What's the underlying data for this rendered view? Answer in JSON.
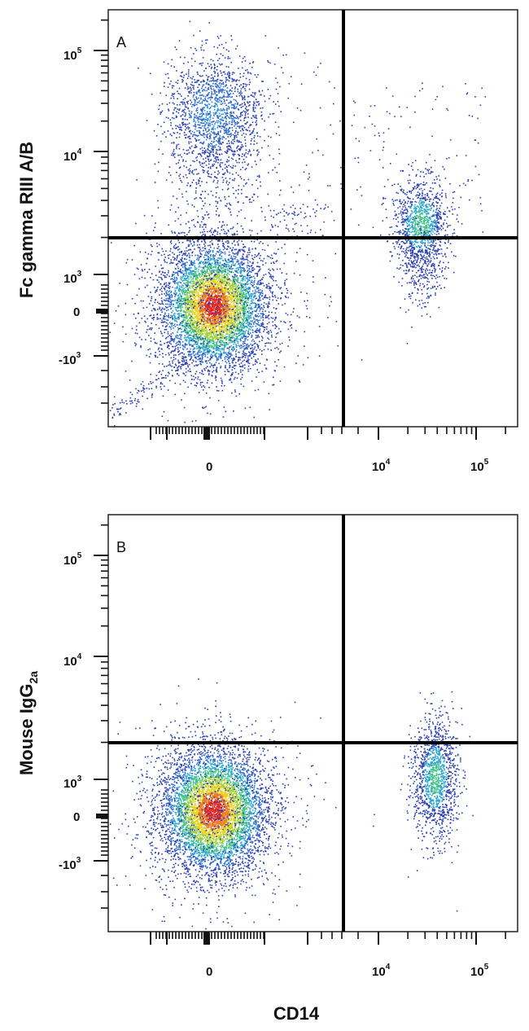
{
  "chart_data": [
    {
      "type": "scatter",
      "panel_label": "A",
      "xlabel": "CD14",
      "ylabel": "Fc gamma RIII A/B",
      "x_scale": "biexponential",
      "y_scale": "biexponential",
      "x_ticks": [
        "0",
        "10^4",
        "10^5"
      ],
      "y_ticks": [
        "10^5",
        "10^4",
        "10^3",
        "0",
        "-10^3"
      ],
      "xlim": [
        -2000,
        250000
      ],
      "ylim": [
        -8000,
        250000
      ],
      "quadrant_gate": {
        "x": 4000,
        "y": 2200
      },
      "color_scale": "density (blue-green-yellow-red)",
      "populations": [
        {
          "x": 0,
          "y": 100,
          "description": "high-density core"
        },
        {
          "x": 200,
          "y": 25000
        },
        {
          "x": 30000,
          "y": 2500
        }
      ]
    },
    {
      "type": "scatter",
      "panel_label": "B",
      "xlabel": "CD14",
      "ylabel": "Mouse IgG2a",
      "ylabel_main": "Mouse IgG",
      "ylabel_sub": "2a",
      "x_scale": "biexponential",
      "y_scale": "biexponential",
      "x_ticks": [
        "0",
        "10^4",
        "10^5"
      ],
      "y_ticks": [
        "10^5",
        "10^4",
        "10^3",
        "0",
        "-10^3"
      ],
      "xlim": [
        -2000,
        250000
      ],
      "ylim": [
        -8000,
        250000
      ],
      "quadrant_gate": {
        "x": 4000,
        "y": 2200
      },
      "color_scale": "density (blue-green-yellow-red)",
      "populations": [
        {
          "x": 0,
          "y": 100
        },
        {
          "x": 30000,
          "y": 500
        }
      ]
    }
  ],
  "labels": {
    "panel_a": "A",
    "panel_b": "B",
    "ylabel_a": "Fc gamma RIII A/B",
    "ylabel_b_main": "Mouse IgG",
    "ylabel_b_sub": "2a",
    "xlabel": "CD14",
    "ytick_top": "10",
    "ytick_top_exp": "5",
    "ytick_mid": "10",
    "ytick_mid_exp": "4",
    "ytick_low": "10",
    "ytick_low_exp": "3",
    "ytick_zero": "0",
    "ytick_neg": "-10",
    "ytick_neg_exp": "3",
    "xtick_zero": "0",
    "xtick_4": "10",
    "xtick_4_exp": "4",
    "xtick_5": "10",
    "xtick_5_exp": "5"
  }
}
